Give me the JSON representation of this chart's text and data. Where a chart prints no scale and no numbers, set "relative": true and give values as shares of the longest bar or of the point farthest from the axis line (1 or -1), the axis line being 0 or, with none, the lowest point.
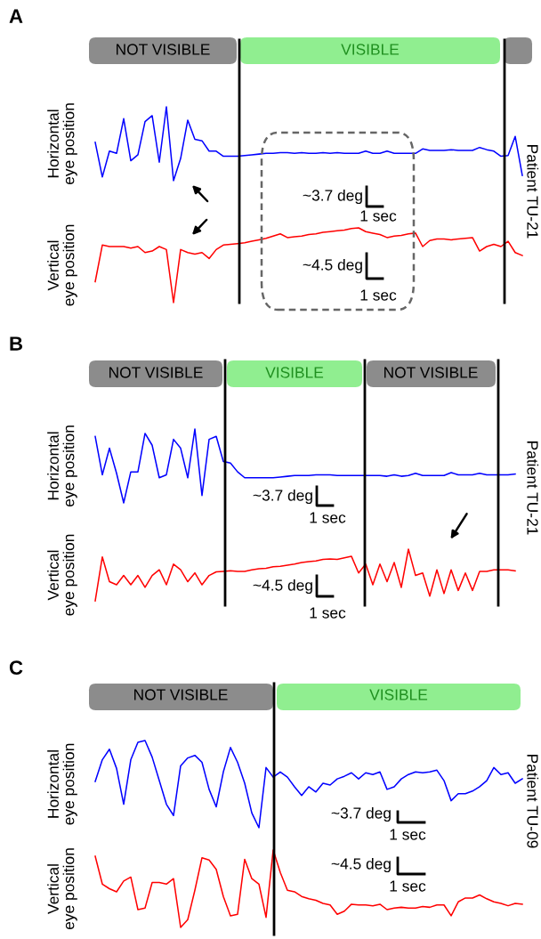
{
  "chart_data": [
    {
      "type": "line",
      "title": "A",
      "ylabel": "Horizontal\neye position",
      "relative": true,
      "tick_labels": false,
      "color": "#0000ff",
      "categories": [
        null,
        null,
        null,
        null,
        null,
        null,
        null,
        null,
        null,
        null,
        null,
        null,
        null,
        null,
        null,
        null,
        null,
        null,
        null,
        null,
        null,
        null,
        null,
        null,
        null,
        null,
        null,
        null,
        null,
        null,
        null,
        null,
        null,
        null,
        null,
        null,
        null,
        null,
        null,
        null,
        null,
        null,
        null,
        null,
        null,
        null,
        null,
        null,
        null,
        null,
        null,
        null,
        null,
        null,
        null,
        null,
        null,
        null,
        null,
        null,
        null
      ],
      "values": [
        0.52,
        0.05,
        0.4,
        0.37,
        0.84,
        0.27,
        0.35,
        0.8,
        0.88,
        0.25,
        1,
        0,
        0.3,
        0.82,
        0.56,
        0.54,
        0.4,
        0.4,
        0.33,
        0.33,
        0.33,
        0.34,
        0.35,
        0.36,
        0.37,
        0.37,
        0.38,
        0.38,
        0.37,
        0.38,
        0.37,
        0.37,
        0.38,
        0.37,
        0.38,
        0.37,
        0.37,
        0.37,
        0.4,
        0.37,
        0.37,
        0.4,
        0.37,
        0.37,
        0.37,
        0.37,
        0.43,
        0.41,
        0.41,
        0.41,
        0.42,
        0.41,
        0.41,
        0.41,
        0.45,
        0.42,
        0.4,
        0.33,
        0.34,
        0.6,
        0.07
      ],
      "annotations": [
        "NOT VISIBLE",
        "VISIBLE",
        "~3.7 deg",
        "1 sec",
        "Patient TU-21"
      ]
    },
    {
      "type": "line",
      "ylabel": "Vertical\neye position",
      "relative": true,
      "tick_labels": false,
      "color": "#ff0000",
      "categories": [
        null,
        null,
        null,
        null,
        null,
        null,
        null,
        null,
        null,
        null,
        null,
        null,
        null,
        null,
        null,
        null,
        null,
        null,
        null,
        null,
        null,
        null,
        null,
        null,
        null,
        null,
        null,
        null,
        null,
        null,
        null,
        null,
        null,
        null,
        null,
        null,
        null,
        null,
        null,
        null,
        null,
        null,
        null,
        null,
        null,
        null,
        null,
        null,
        null,
        null,
        null,
        null,
        null,
        null,
        null,
        null,
        null,
        null,
        null,
        null,
        null
      ],
      "values": [
        0.28,
        0.77,
        0.75,
        0.75,
        0.75,
        0.73,
        0.75,
        0.67,
        0.69,
        0.75,
        0.71,
        0,
        0.71,
        0.67,
        0.65,
        0.67,
        0.59,
        0.71,
        0.77,
        0.78,
        0.79,
        0.8,
        0.82,
        0.84,
        0.86,
        0.89,
        0.92,
        0.87,
        0.88,
        0.89,
        0.91,
        0.92,
        0.94,
        0.95,
        0.96,
        0.97,
        0.99,
        1,
        0.95,
        0.93,
        0.91,
        0.87,
        0.89,
        0.9,
        0.92,
        0.93,
        0.75,
        0.83,
        0.85,
        0.85,
        0.84,
        0.85,
        0.86,
        0.87,
        0.69,
        0.75,
        0.78,
        0.75,
        0.82,
        0.67,
        0.63
      ],
      "annotations": [
        "~4.5 deg",
        "1 sec"
      ]
    },
    {
      "type": "line",
      "title": "B",
      "ylabel": "Horizontal\neye position",
      "relative": true,
      "tick_labels": false,
      "color": "#0000ff",
      "categories": [
        null,
        null,
        null,
        null,
        null,
        null,
        null,
        null,
        null,
        null,
        null,
        null,
        null,
        null,
        null,
        null,
        null,
        null,
        null,
        null,
        null,
        null,
        null,
        null,
        null,
        null,
        null,
        null,
        null,
        null,
        null,
        null,
        null,
        null,
        null,
        null,
        null,
        null,
        null,
        null,
        null,
        null,
        null,
        null,
        null,
        null,
        null,
        null,
        null,
        null,
        null,
        null,
        null,
        null,
        null,
        null,
        null,
        null,
        null,
        null,
        null
      ],
      "values": [
        0.9,
        0.38,
        0.74,
        0.4,
        0,
        0.42,
        0.42,
        0.94,
        0.78,
        0.34,
        0.38,
        0.86,
        0.74,
        0.34,
        1,
        0.1,
        0.86,
        0.9,
        0.56,
        0.54,
        0.42,
        0.34,
        0.34,
        0.34,
        0.34,
        0.34,
        0.35,
        0.36,
        0.37,
        0.37,
        0.37,
        0.38,
        0.38,
        0.38,
        0.37,
        0.37,
        0.37,
        0.37,
        0.37,
        0.37,
        0.37,
        0.36,
        0.38,
        0.36,
        0.37,
        0.4,
        0.37,
        0.37,
        0.37,
        0.37,
        0.41,
        0.38,
        0.38,
        0.38,
        0.4,
        0.38,
        0.38,
        0.38,
        0.38,
        0.39,
        null
      ],
      "annotations": [
        "NOT VISIBLE",
        "VISIBLE",
        "NOT VISIBLE",
        "~3.7 deg",
        "1 sec",
        "Patient TU-21"
      ]
    },
    {
      "type": "line",
      "ylabel": "Vertical\neye position",
      "relative": true,
      "tick_labels": false,
      "color": "#ff0000",
      "categories": [
        null,
        null,
        null,
        null,
        null,
        null,
        null,
        null,
        null,
        null,
        null,
        null,
        null,
        null,
        null,
        null,
        null,
        null,
        null,
        null,
        null,
        null,
        null,
        null,
        null,
        null,
        null,
        null,
        null,
        null,
        null,
        null,
        null,
        null,
        null,
        null,
        null,
        null,
        null,
        null,
        null,
        null,
        null,
        null,
        null,
        null,
        null,
        null,
        null,
        null,
        null,
        null,
        null,
        null,
        null,
        null,
        null,
        null,
        null,
        null,
        null
      ],
      "values": [
        0,
        0.85,
        0.37,
        0.31,
        0.49,
        0.31,
        0.49,
        0.26,
        0.49,
        0.6,
        0.31,
        0.71,
        0.6,
        0.37,
        0.54,
        0.31,
        0.49,
        0.56,
        0.57,
        0.58,
        0.57,
        0.57,
        0.6,
        0.62,
        0.63,
        0.66,
        0.67,
        0.69,
        0.71,
        0.74,
        0.76,
        0.77,
        0.8,
        0.81,
        0.8,
        0.83,
        0.86,
        0.54,
        0.71,
        0.31,
        0.71,
        0.37,
        0.74,
        0.26,
        1,
        0.49,
        0.54,
        0.09,
        0.6,
        0.14,
        0.6,
        0.2,
        0.54,
        0.2,
        0.57,
        0.57,
        0.6,
        0.6,
        0.6,
        0.58,
        null
      ],
      "annotations": [
        "~4.5 deg",
        "1 sec"
      ]
    },
    {
      "type": "line",
      "title": "C",
      "ylabel": "Horizontal\neye position",
      "relative": true,
      "tick_labels": false,
      "color": "#0000ff",
      "categories": [
        null,
        null,
        null,
        null,
        null,
        null,
        null,
        null,
        null,
        null,
        null,
        null,
        null,
        null,
        null,
        null,
        null,
        null,
        null,
        null,
        null,
        null,
        null,
        null,
        null,
        null,
        null,
        null,
        null,
        null,
        null,
        null,
        null,
        null,
        null,
        null,
        null,
        null,
        null,
        null,
        null,
        null,
        null,
        null,
        null,
        null,
        null,
        null,
        null,
        null,
        null,
        null,
        null,
        null,
        null,
        null,
        null,
        null,
        null,
        null,
        null
      ],
      "values": [
        0.53,
        0.78,
        0.9,
        0.68,
        0.27,
        0.78,
        0.98,
        1,
        0.81,
        0.54,
        0.27,
        0.14,
        0.71,
        0.8,
        0.83,
        0.75,
        0.44,
        0.24,
        0.64,
        0.92,
        0.75,
        0.51,
        0.17,
        0,
        0.69,
        0.58,
        0.64,
        0.58,
        0.47,
        0.37,
        0.47,
        0.41,
        0.51,
        0.49,
        0.56,
        0.59,
        0.63,
        0.56,
        0.63,
        0.61,
        0.64,
        0.44,
        0.47,
        0.56,
        0.61,
        0.64,
        0.63,
        0.64,
        0.66,
        0.54,
        0.31,
        0.39,
        0.39,
        0.42,
        0.47,
        0.54,
        0.69,
        0.61,
        0.63,
        0.51,
        0.56
      ],
      "annotations": [
        "NOT VISIBLE",
        "VISIBLE",
        "~3.7 deg",
        "1 sec",
        "Patient TU-09"
      ]
    },
    {
      "type": "line",
      "ylabel": "Vertical\neye position",
      "relative": true,
      "tick_labels": false,
      "color": "#ff0000",
      "categories": [
        null,
        null,
        null,
        null,
        null,
        null,
        null,
        null,
        null,
        null,
        null,
        null,
        null,
        null,
        null,
        null,
        null,
        null,
        null,
        null,
        null,
        null,
        null,
        null,
        null,
        null,
        null,
        null,
        null,
        null,
        null,
        null,
        null,
        null,
        null,
        null,
        null,
        null,
        null,
        null,
        null,
        null,
        null,
        null,
        null,
        null,
        null,
        null,
        null,
        null,
        null,
        null,
        null,
        null,
        null,
        null,
        null,
        null,
        null,
        null,
        null
      ],
      "values": [
        0.92,
        0.56,
        0.5,
        0.46,
        0.6,
        0.65,
        0.23,
        0.25,
        0.58,
        0.58,
        0.56,
        0.63,
        0,
        0.1,
        0.48,
        0.9,
        0.87,
        0.75,
        0.4,
        0.15,
        0.17,
        0.88,
        0.63,
        0.56,
        0.13,
        1,
        0.71,
        0.48,
        0.46,
        0.4,
        0.37,
        0.35,
        0.31,
        0.29,
        0.17,
        0.21,
        0.3,
        0.29,
        0.29,
        0.28,
        0.3,
        0.23,
        0.25,
        0.26,
        0.25,
        0.25,
        0.27,
        0.26,
        0.29,
        0.29,
        0.15,
        0.33,
        0.38,
        0.38,
        0.42,
        0.37,
        0.33,
        0.31,
        0.28,
        0.31,
        0.3
      ],
      "annotations": [
        "~4.5 deg",
        "1 sec"
      ]
    }
  ]
}
